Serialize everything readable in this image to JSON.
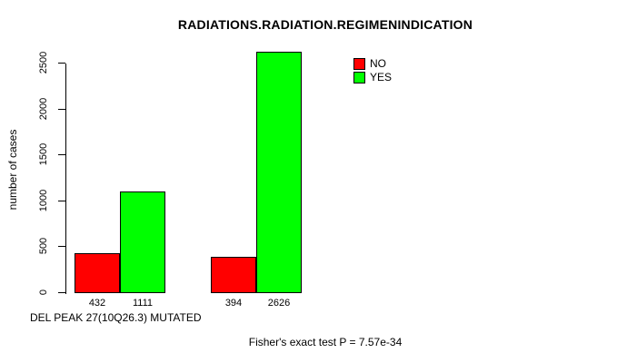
{
  "chart_data": {
    "type": "bar",
    "title": "RADIATIONS.RADIATION.REGIMENINDICATION",
    "ylabel": "number of cases",
    "xlabel": "DEL PEAK 27(10Q26.3) MUTATED",
    "footnote": "Fisher's exact test P = 7.57e-34",
    "ylim": [
      0,
      2500
    ],
    "yticks": [
      0,
      500,
      1000,
      1500,
      2000,
      2500
    ],
    "grid": false,
    "value_labels_shown": true,
    "series": [
      {
        "name": "NO",
        "color": "#ff0000",
        "values": [
          432,
          394
        ]
      },
      {
        "name": "YES",
        "color": "#00ff00",
        "values": [
          1111,
          2626
        ]
      }
    ],
    "legend": {
      "position": "top-right",
      "entries": [
        "NO",
        "YES"
      ]
    },
    "axis_color": "#000000",
    "background": "#ffffff"
  }
}
